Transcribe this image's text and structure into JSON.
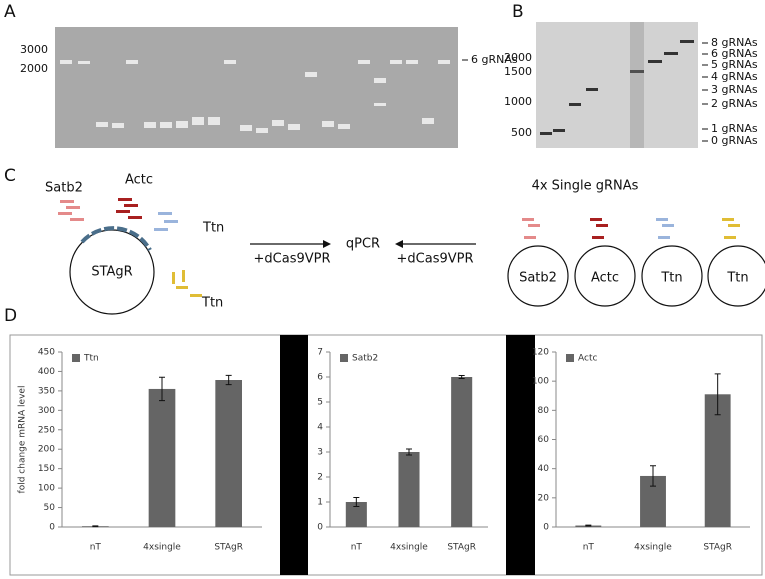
{
  "panels": [
    "A",
    "B",
    "C",
    "D"
  ],
  "gel_a": {
    "ladder": [
      "3000",
      "2000"
    ],
    "band_label": "6 gRNAs"
  },
  "gel_b": {
    "ladder": [
      "2000",
      "1500",
      "1000",
      "500"
    ],
    "band_labels": [
      "8 gRNAs",
      "6 gRNAs",
      "5 gRNAs",
      "4 gRNAs",
      "3 gRNAs",
      "2 gRNAs",
      "1 gRNAs",
      "0 gRNAs"
    ]
  },
  "diagram": {
    "left_targets": [
      "Satb2",
      "Actc",
      "Ttn",
      "Ttn"
    ],
    "vector": "STAgR",
    "treatment": "+dCas9VPR",
    "readout": "qPCR",
    "right_title": "4x Single gRNAs",
    "single_vectors": [
      "Satb2",
      "Actc",
      "Ttn",
      "Ttn"
    ]
  },
  "chart_data": [
    {
      "type": "bar",
      "ylabel": "fold change mRNA level",
      "categories": [
        "nT",
        "4xsingle",
        "STAgR"
      ],
      "series": [
        {
          "name": "Ttn",
          "color": "#656565",
          "values": [
            2,
            355,
            378
          ],
          "errors": [
            1,
            30,
            12
          ]
        }
      ],
      "ylim": [
        0,
        450
      ],
      "yticks": [
        0,
        50,
        100,
        150,
        200,
        250,
        300,
        350,
        400,
        450
      ]
    },
    {
      "type": "bar",
      "categories": [
        "nT",
        "4xsingle",
        "STAgR"
      ],
      "series": [
        {
          "name": "Satb2",
          "color": "#656565",
          "values": [
            1,
            3,
            6
          ],
          "errors": [
            0.18,
            0.12,
            0.06
          ]
        }
      ],
      "ylim": [
        0,
        7
      ],
      "yticks": [
        0,
        1,
        2,
        3,
        4,
        5,
        6,
        7
      ]
    },
    {
      "type": "bar",
      "categories": [
        "nT",
        "4xsingle",
        "STAgR"
      ],
      "series": [
        {
          "name": "Actc",
          "color": "#656565",
          "values": [
            1,
            35,
            91
          ],
          "errors": [
            0.3,
            7,
            14
          ]
        }
      ],
      "ylim": [
        0,
        120
      ],
      "yticks": [
        0,
        20,
        40,
        60,
        80,
        100,
        120
      ]
    }
  ]
}
